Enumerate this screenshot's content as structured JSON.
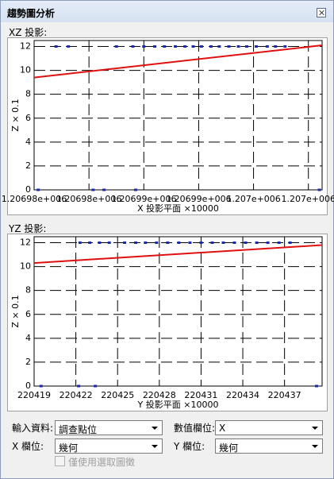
{
  "window": {
    "title": "趨勢圖分析"
  },
  "chart_data": [
    {
      "type": "scatter",
      "title": "XZ 投影:",
      "x_label": "X 投影平面 ×10000",
      "y_label": "Z × 0.1",
      "xlim": [
        1206980,
        1207001
      ],
      "ylim": [
        0,
        12.5
      ],
      "xticks": [
        {
          "value": 1206980,
          "label": "1.20698e+006"
        },
        {
          "value": 1206984,
          "label": "1.20698e+006"
        },
        {
          "value": 1206988,
          "label": "1.20699e+006"
        },
        {
          "value": 1206992,
          "label": "1.20699e+006"
        },
        {
          "value": 1206996,
          "label": "1.207e+006"
        },
        {
          "value": 1207000,
          "label": "1.207e+006"
        }
      ],
      "yticks": [
        0,
        2,
        4,
        6,
        8,
        10,
        12
      ],
      "grid": true,
      "series": [
        {
          "kind": "markers",
          "color": "#1a2aa8",
          "x": [
            1206981.6,
            1206982.5,
            1206986,
            1206987.2,
            1206988,
            1206988.8,
            1206989.5,
            1206990.3,
            1206991,
            1206991.6,
            1206992.2,
            1206992.9,
            1206993.5,
            1206994.2,
            1206994.9,
            1206995.5,
            1206996.2,
            1206997,
            1206997.6,
            1206998.3,
            1206980.3,
            1206984.3,
            1206985.1,
            1206987.4,
            1207000.8
          ],
          "y": [
            12,
            12,
            12,
            12,
            12,
            12,
            12,
            12,
            12,
            12,
            12,
            12,
            12,
            12,
            12,
            12,
            12,
            12,
            12,
            12,
            0,
            0,
            0,
            0,
            0
          ]
        },
        {
          "kind": "line",
          "color": "#e01010",
          "x": [
            1206980,
            1207001
          ],
          "y": [
            9.4,
            12.1
          ]
        }
      ]
    },
    {
      "type": "scatter",
      "title": "YZ 投影:",
      "x_label": "Y 投影平面 ×10000",
      "y_label": "Z × 0.1",
      "xlim": [
        220419,
        220439.7
      ],
      "ylim": [
        0,
        12.5
      ],
      "xticks": [
        220419,
        220422,
        220425,
        220428,
        220431,
        220434,
        220437
      ],
      "yticks": [
        0,
        2,
        4,
        6,
        8,
        10,
        12
      ],
      "grid": true,
      "series": [
        {
          "kind": "markers",
          "color": "#1a2aa8",
          "x": [
            220422.3,
            220423,
            220423.7,
            220424.4,
            220425.5,
            220426.3,
            220427,
            220427.8,
            220428.6,
            220429.4,
            220430.2,
            220431,
            220431.8,
            220432.6,
            220433.4,
            220434.2,
            220435,
            220435.8,
            220436.6,
            220437.4,
            220419.5,
            220422.2,
            220423.4,
            220439.3
          ],
          "y": [
            12,
            12,
            12,
            12,
            12,
            12,
            12,
            12,
            12,
            12,
            12,
            12,
            12,
            12,
            12,
            12,
            12,
            12,
            12,
            12,
            0,
            0,
            0,
            0
          ]
        },
        {
          "kind": "line",
          "color": "#e01010",
          "x": [
            220419,
            220439.7
          ],
          "y": [
            10.3,
            11.8
          ]
        }
      ]
    }
  ],
  "form": {
    "input_label": "輸入資料:",
    "input_value": "調查點位",
    "value_field_label": "數值欄位:",
    "value_field": "X",
    "x_field_label": "X 欄位:",
    "x_field": "幾何",
    "y_field_label": "Y 欄位:",
    "y_field": "幾何",
    "selected_only": "僅使用選取圖徵"
  }
}
